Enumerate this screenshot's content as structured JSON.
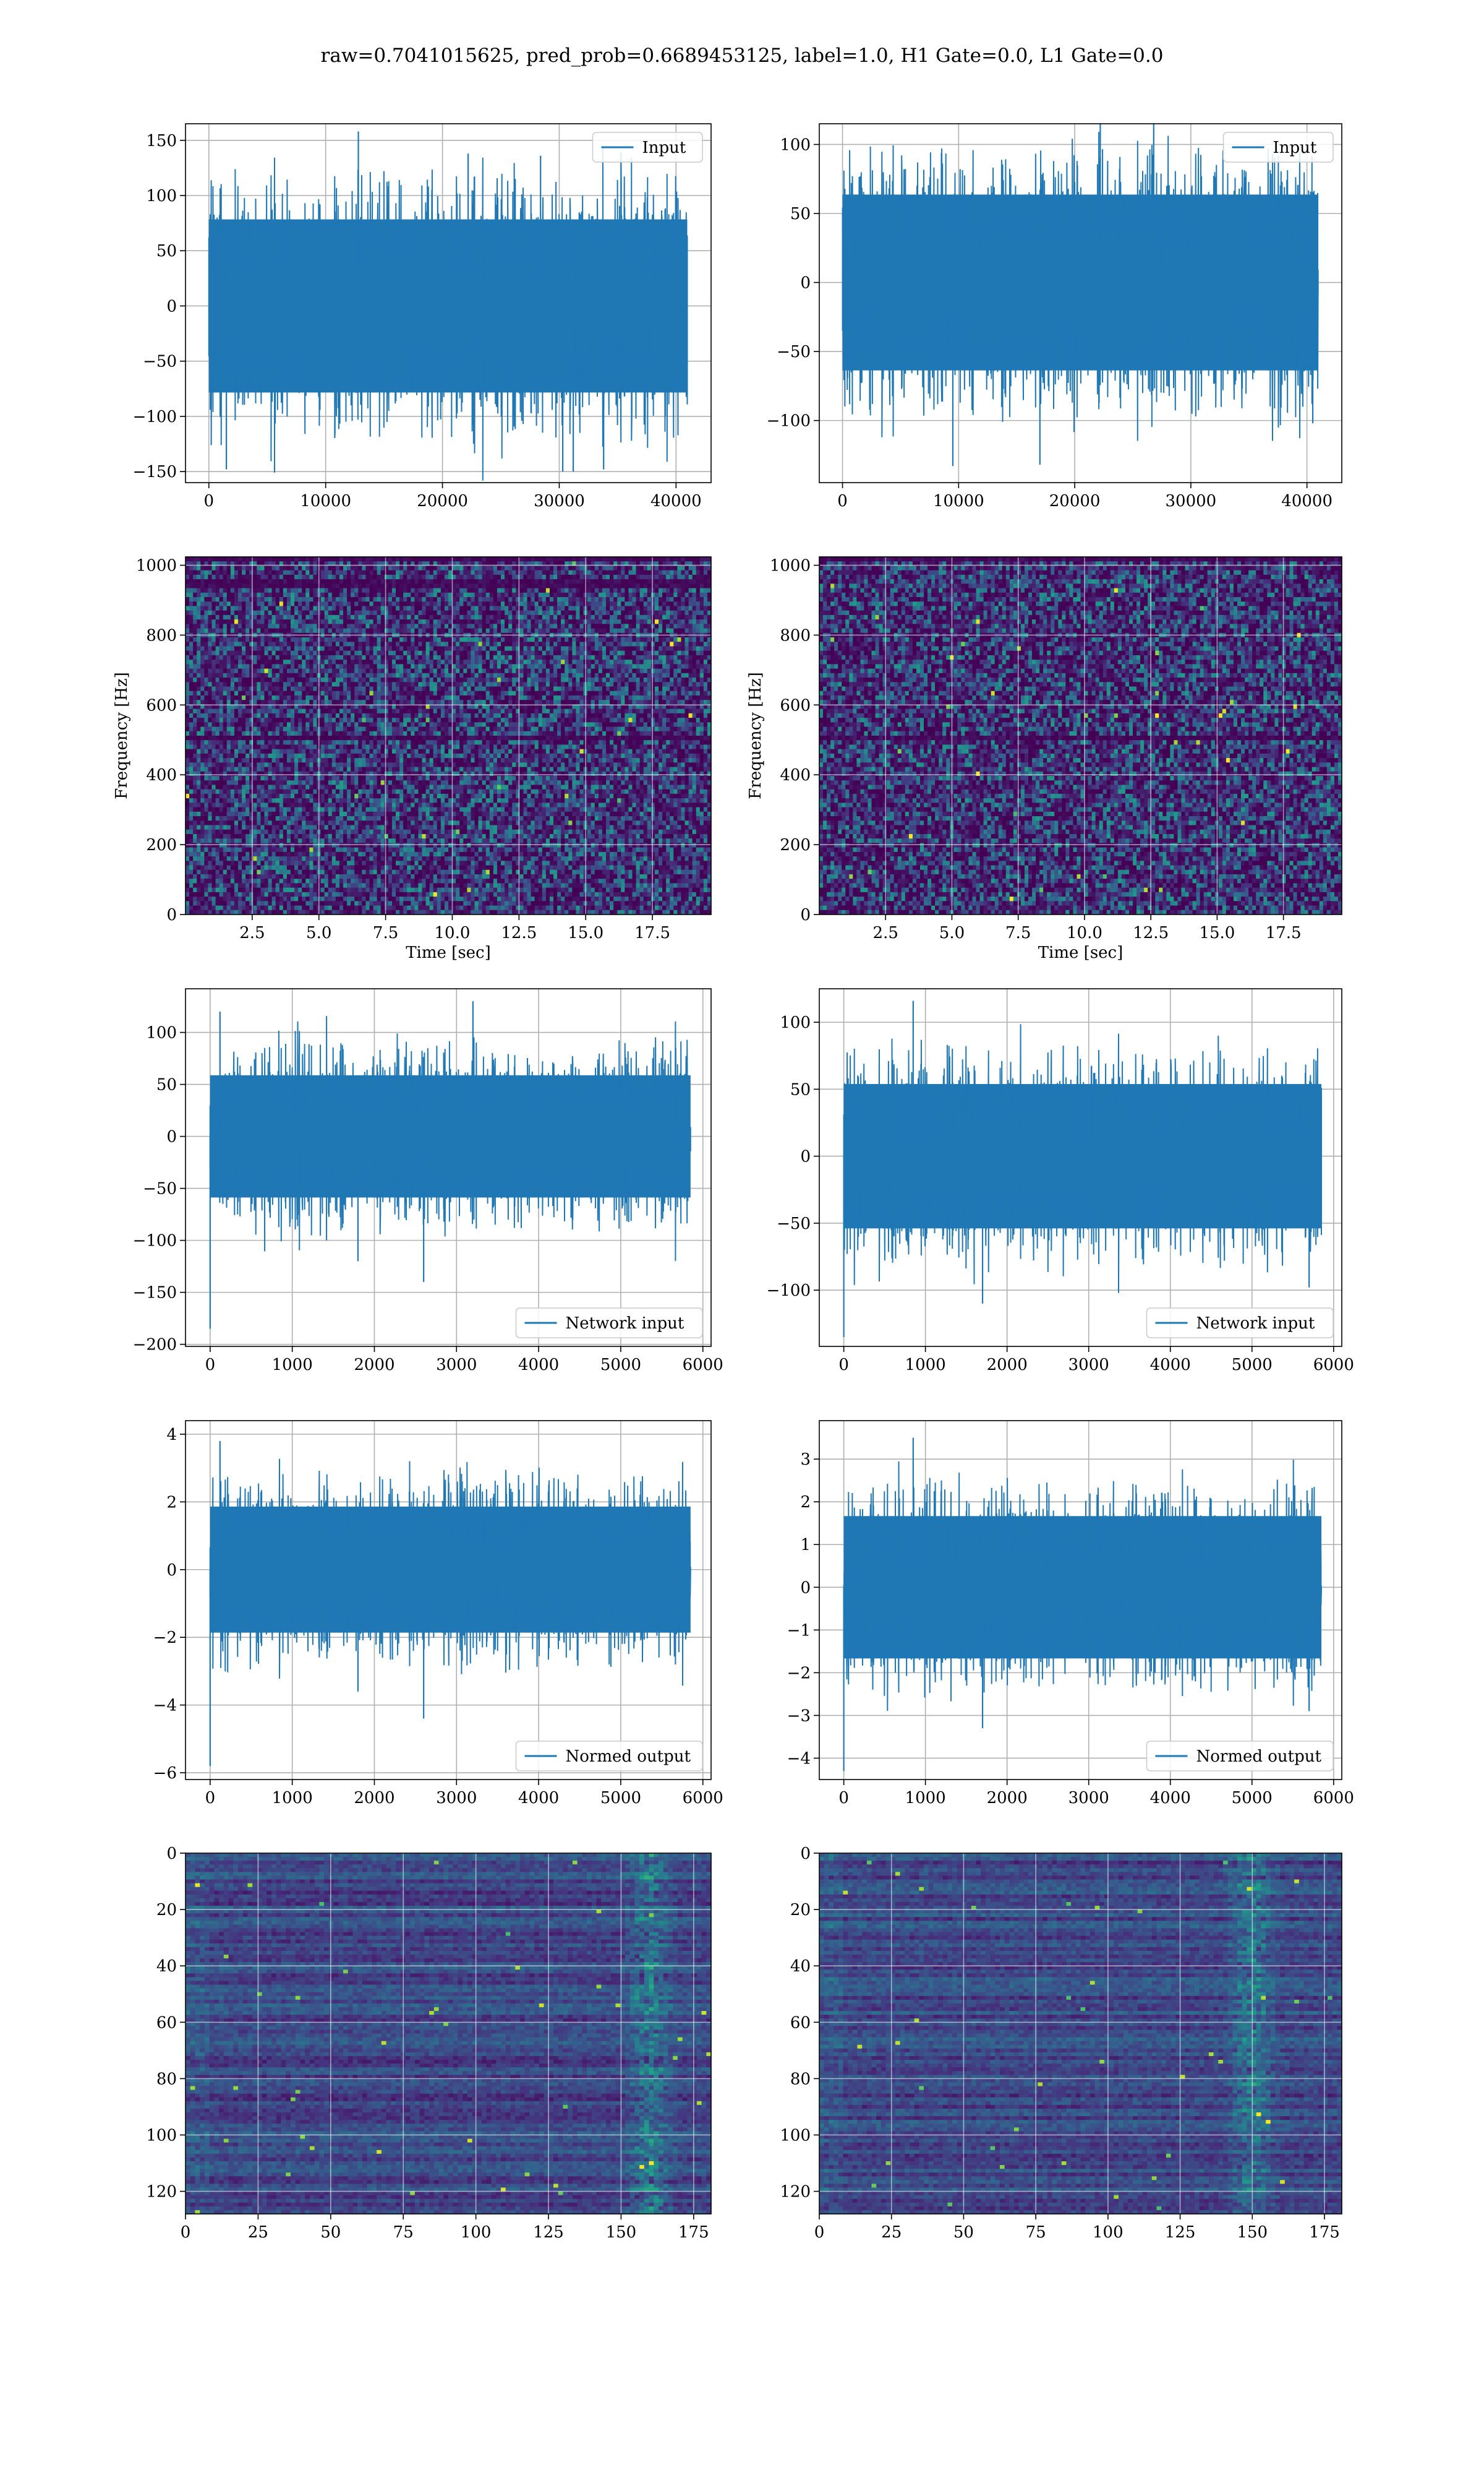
{
  "figure": {
    "suptitle": "raw=0.7041015625, pred_prob=0.6689453125, label=1.0, H1 Gate=0.0, L1 Gate=0.0",
    "line_color": "#1f77b4",
    "grid": true
  },
  "chart_data": [
    {
      "id": "h1-input",
      "type": "line",
      "column": "left",
      "row": 1,
      "title": "",
      "xlabel": "",
      "ylabel": "",
      "xlim": [
        -2000,
        43000
      ],
      "ylim": [
        -160,
        165
      ],
      "xticks": [
        0,
        10000,
        20000,
        30000,
        40000
      ],
      "yticks": [
        -150,
        -100,
        -50,
        0,
        50,
        100,
        150
      ],
      "legend": "Input",
      "legend_loc": "upper right",
      "series": [
        {
          "name": "Input",
          "n_samples": 40960,
          "x_range": [
            0,
            40960
          ],
          "band": 80,
          "min": -150,
          "max": 158,
          "peaks": [
            [
              1500,
              -148
            ],
            [
              12800,
              158
            ],
            [
              22200,
              138
            ],
            [
              28400,
              136
            ],
            [
              30300,
              -150
            ],
            [
              31200,
              -150
            ],
            [
              33800,
              -148
            ]
          ]
        }
      ]
    },
    {
      "id": "l1-input",
      "type": "line",
      "column": "right",
      "row": 1,
      "title": "",
      "xlabel": "",
      "ylabel": "",
      "xlim": [
        -2000,
        43000
      ],
      "ylim": [
        -145,
        115
      ],
      "xticks": [
        0,
        10000,
        20000,
        30000,
        40000
      ],
      "yticks": [
        -100,
        -50,
        0,
        50,
        100
      ],
      "legend": "Input",
      "legend_loc": "upper right",
      "series": [
        {
          "name": "Input",
          "n_samples": 40960,
          "x_range": [
            0,
            40960
          ],
          "band": 65,
          "min": -135,
          "max": 125,
          "peaks": [
            [
              9500,
              -133
            ],
            [
              22200,
              120
            ],
            [
              26800,
              125
            ],
            [
              17000,
              -132
            ],
            [
              40500,
              -102
            ]
          ]
        }
      ]
    },
    {
      "id": "h1-spectrogram",
      "type": "heatmap",
      "column": "left",
      "row": 2,
      "title": "",
      "xlabel": "Time [sec]",
      "ylabel": "Frequency [Hz]",
      "xlim": [
        0,
        19.7
      ],
      "ylim": [
        0,
        1024
      ],
      "xticks": [
        2.5,
        5.0,
        7.5,
        10.0,
        12.5,
        15.0,
        17.5
      ],
      "xtick_labels": [
        "2.5",
        "5.0",
        "7.5",
        "10.0",
        "12.5",
        "15.0",
        "17.5"
      ],
      "yticks": [
        0,
        200,
        400,
        600,
        800,
        1000
      ],
      "colormap": [
        "#440154",
        "#46327e",
        "#365c8d",
        "#277f8e",
        "#1fa187",
        "#4ac16d",
        "#a0da39",
        "#fde725"
      ],
      "rows": 80,
      "cols": 140,
      "dark_bands": [
        [
          500,
          515
        ],
        [
          945,
          960
        ],
        [
          1012,
          1024
        ]
      ]
    },
    {
      "id": "l1-spectrogram",
      "type": "heatmap",
      "column": "right",
      "row": 2,
      "title": "",
      "xlabel": "Time [sec]",
      "ylabel": "Frequency [Hz]",
      "xlim": [
        0,
        19.7
      ],
      "ylim": [
        0,
        1024
      ],
      "xticks": [
        2.5,
        5.0,
        7.5,
        10.0,
        12.5,
        15.0,
        17.5
      ],
      "xtick_labels": [
        "2.5",
        "5.0",
        "7.5",
        "10.0",
        "12.5",
        "15.0",
        "17.5"
      ],
      "yticks": [
        0,
        200,
        400,
        600,
        800,
        1000
      ],
      "colormap": [
        "#440154",
        "#46327e",
        "#365c8d",
        "#277f8e",
        "#1fa187",
        "#4ac16d",
        "#a0da39",
        "#fde725"
      ],
      "rows": 80,
      "cols": 140,
      "dark_bands": [
        [
          500,
          515
        ],
        [
          1012,
          1024
        ]
      ]
    },
    {
      "id": "h1-network-input",
      "type": "line",
      "column": "left",
      "row": 3,
      "title": "",
      "xlabel": "",
      "ylabel": "",
      "xlim": [
        -300,
        6100
      ],
      "ylim": [
        -202,
        142
      ],
      "xticks": [
        0,
        1000,
        2000,
        3000,
        4000,
        5000,
        6000
      ],
      "yticks": [
        -200,
        -150,
        -100,
        -50,
        0,
        50,
        100
      ],
      "legend": "Network input",
      "legend_loc": "lower right",
      "series": [
        {
          "name": "Network input",
          "n_samples": 5850,
          "x_range": [
            0,
            5850
          ],
          "band": 60,
          "min": -185,
          "max": 130,
          "peaks": [
            [
              0,
              -185
            ],
            [
              120,
              120
            ],
            [
              3200,
              130
            ],
            [
              2600,
              -140
            ],
            [
              1800,
              -120
            ]
          ]
        }
      ]
    },
    {
      "id": "l1-network-input",
      "type": "line",
      "column": "right",
      "row": 3,
      "title": "",
      "xlabel": "",
      "ylabel": "",
      "xlim": [
        -300,
        6100
      ],
      "ylim": [
        -142,
        125
      ],
      "xticks": [
        0,
        1000,
        2000,
        3000,
        4000,
        5000,
        6000
      ],
      "yticks": [
        -100,
        -50,
        0,
        50,
        100
      ],
      "legend": "Network input",
      "legend_loc": "lower right",
      "series": [
        {
          "name": "Network input",
          "n_samples": 5850,
          "x_range": [
            0,
            5850
          ],
          "band": 55,
          "min": -135,
          "max": 116,
          "peaks": [
            [
              0,
              -135
            ],
            [
              850,
              116
            ],
            [
              1700,
              -110
            ],
            [
              5700,
              -98
            ]
          ]
        }
      ]
    },
    {
      "id": "h1-normed-output",
      "type": "line",
      "column": "left",
      "row": 4,
      "title": "",
      "xlabel": "",
      "ylabel": "",
      "xlim": [
        -300,
        6100
      ],
      "ylim": [
        -6.2,
        4.4
      ],
      "xticks": [
        0,
        1000,
        2000,
        3000,
        4000,
        5000,
        6000
      ],
      "yticks": [
        -6,
        -4,
        -2,
        0,
        2,
        4
      ],
      "legend": "Normed output",
      "legend_loc": "lower right",
      "series": [
        {
          "name": "Normed output",
          "n_samples": 5850,
          "x_range": [
            0,
            5850
          ],
          "band": 1.9,
          "min": -5.8,
          "max": 3.9,
          "peaks": [
            [
              0,
              -5.8
            ],
            [
              120,
              3.8
            ],
            [
              2600,
              -4.4
            ],
            [
              1800,
              -3.6
            ]
          ]
        }
      ]
    },
    {
      "id": "l1-normed-output",
      "type": "line",
      "column": "right",
      "row": 4,
      "title": "",
      "xlabel": "",
      "ylabel": "",
      "xlim": [
        -300,
        6100
      ],
      "ylim": [
        -4.5,
        3.9
      ],
      "xticks": [
        0,
        1000,
        2000,
        3000,
        4000,
        5000,
        6000
      ],
      "yticks": [
        -4,
        -3,
        -2,
        -1,
        0,
        1,
        2,
        3
      ],
      "legend": "Normed output",
      "legend_loc": "lower right",
      "series": [
        {
          "name": "Normed output",
          "n_samples": 5850,
          "x_range": [
            0,
            5850
          ],
          "band": 1.7,
          "min": -4.3,
          "max": 3.5,
          "peaks": [
            [
              0,
              -4.3
            ],
            [
              850,
              3.5
            ],
            [
              1700,
              -3.3
            ],
            [
              5700,
              -2.9
            ]
          ]
        }
      ]
    },
    {
      "id": "h1-feature-map",
      "type": "heatmap",
      "column": "left",
      "row": 5,
      "title": "",
      "xlabel": "",
      "ylabel": "",
      "xlim": [
        0,
        181
      ],
      "ylim": [
        128,
        0
      ],
      "xticks": [
        0,
        25,
        50,
        75,
        100,
        125,
        150,
        175
      ],
      "xtick_labels": [
        "0",
        "25",
        "50",
        "75",
        "100",
        "125",
        "150",
        "175"
      ],
      "yticks": [
        0,
        20,
        40,
        60,
        80,
        100,
        120
      ],
      "colormap": [
        "#440154",
        "#46327e",
        "#365c8d",
        "#277f8e",
        "#1fa187",
        "#4ac16d",
        "#a0da39",
        "#fde725"
      ],
      "rows": 128,
      "cols": 181,
      "hot_column": 160
    },
    {
      "id": "l1-feature-map",
      "type": "heatmap",
      "column": "right",
      "row": 5,
      "title": "",
      "xlabel": "",
      "ylabel": "",
      "xlim": [
        0,
        181
      ],
      "ylim": [
        128,
        0
      ],
      "xticks": [
        0,
        25,
        50,
        75,
        100,
        125,
        150,
        175
      ],
      "xtick_labels": [
        "0",
        "25",
        "50",
        "75",
        "100",
        "125",
        "150",
        "175"
      ],
      "yticks": [
        0,
        20,
        40,
        60,
        80,
        100,
        120
      ],
      "colormap": [
        "#440154",
        "#46327e",
        "#365c8d",
        "#277f8e",
        "#1fa187",
        "#4ac16d",
        "#a0da39",
        "#fde725"
      ],
      "rows": 128,
      "cols": 181,
      "hot_column": 150
    }
  ]
}
